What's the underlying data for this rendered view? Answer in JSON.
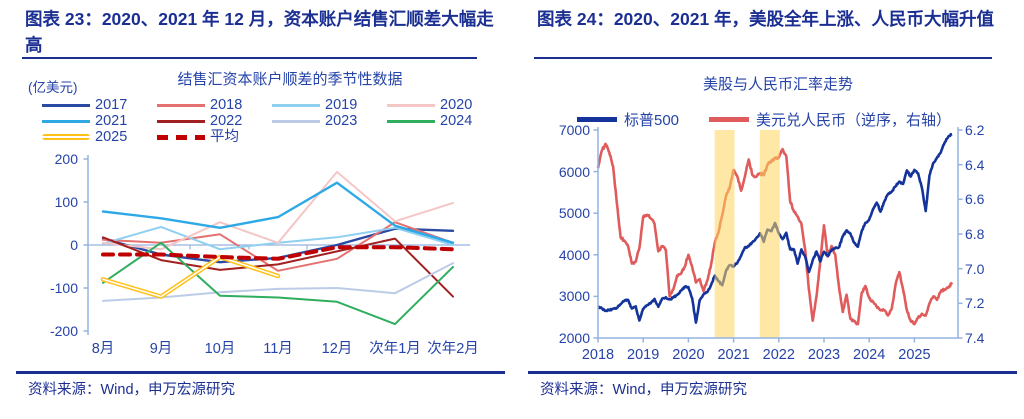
{
  "page": {
    "background": "#FFFFFF"
  },
  "colors": {
    "title_navy": "#1B2F93",
    "label_navy": "#2543A8",
    "axis_blue": "#94B3DF",
    "band_yellow": "#FFD55C"
  },
  "left_panel": {
    "title": "图表 23：2020、2021 年 12 月，资本账户结售汇顺差大幅走高",
    "source": "资料来源：Wind，申万宏源研究",
    "chart_data": {
      "type": "line",
      "title": "结售汇资本账户顺差的季节性数据",
      "unit_label": "(亿美元)",
      "categories": [
        "8月",
        "9月",
        "10月",
        "11月",
        "12月",
        "次年1月",
        "次年2月"
      ],
      "ylim": [
        -200,
        200
      ],
      "yticks": [
        200,
        100,
        0,
        -100,
        -200
      ],
      "grid": "zero-line-only",
      "legend_position": "top",
      "series": [
        {
          "name": "2017",
          "color": "#2B4AA4",
          "values": [
            15,
            -22,
            -40,
            -30,
            0,
            38,
            33
          ]
        },
        {
          "name": "2018",
          "color": "#E57070",
          "values": [
            12,
            5,
            25,
            -60,
            -32,
            53,
            5
          ]
        },
        {
          "name": "2019",
          "color": "#8FCFF0",
          "values": [
            3,
            42,
            -10,
            5,
            18,
            40,
            0
          ]
        },
        {
          "name": "2020",
          "color": "#F5C6C6",
          "values": [
            5,
            -10,
            53,
            5,
            170,
            55,
            98
          ]
        },
        {
          "name": "2021",
          "color": "#2EA9E6",
          "values": [
            78,
            62,
            40,
            65,
            145,
            45,
            5
          ]
        },
        {
          "name": "2022",
          "color": "#A32020",
          "values": [
            18,
            -35,
            -58,
            -45,
            -15,
            15,
            -120
          ]
        },
        {
          "name": "2023",
          "color": "#BCCCE8",
          "values": [
            -130,
            -122,
            -110,
            -102,
            -100,
            -112,
            -42
          ]
        },
        {
          "name": "2024",
          "color": "#2FAE5F",
          "values": [
            -88,
            5,
            -118,
            -122,
            -132,
            -184,
            -51
          ]
        },
        {
          "name": "2025",
          "color": "#FFC01A",
          "style": "double",
          "values": [
            -80,
            -120,
            -28,
            -72,
            null,
            null,
            null
          ]
        },
        {
          "name": "平均",
          "color": "#C00000",
          "style": "dashed",
          "values": [
            -22,
            -22,
            -28,
            -32,
            -5,
            -5,
            -10
          ]
        }
      ]
    }
  },
  "right_panel": {
    "title": "图表 24：2020、2021 年，美股全年上涨、人民币大幅升值",
    "source": "资料来源：Wind，申万宏源研究",
    "chart_data": {
      "type": "line",
      "title": "美股与人民币汇率走势",
      "x_start_year": 2018,
      "x_tick_years": [
        2018,
        2019,
        2020,
        2021,
        2022,
        2023,
        2024,
        2025
      ],
      "left_axis": {
        "range": [
          2000,
          7000
        ],
        "ticks": [
          "7000",
          "6000",
          "5000",
          "4000",
          "3000",
          "2000"
        ]
      },
      "right_axis": {
        "range": [
          6.2,
          7.4
        ],
        "inverted": true,
        "ticks": [
          "6.2",
          "6.4",
          "6.6",
          "6.8",
          "7.0",
          "7.2",
          "7.4"
        ]
      },
      "highlight_bands": [
        {
          "from": 2020.58,
          "to": 2021.02
        },
        {
          "from": 2021.58,
          "to": 2022.02
        }
      ],
      "series": [
        {
          "name": "标普500",
          "axis": "left",
          "color": "#15349B",
          "monthly_values": [
            2750,
            2715,
            2650,
            2670,
            2705,
            2720,
            2815,
            2900,
            2915,
            2710,
            2760,
            2420,
            2704,
            2785,
            2835,
            2940,
            2750,
            2942,
            2980,
            2925,
            2975,
            3035,
            3140,
            3230,
            3225,
            2955,
            2370,
            2910,
            3045,
            3100,
            3270,
            3500,
            3365,
            3270,
            3620,
            3755,
            3715,
            3810,
            3975,
            4180,
            4205,
            4300,
            4395,
            4520,
            4310,
            4605,
            4565,
            4765,
            4515,
            4375,
            4530,
            4130,
            4130,
            3785,
            4130,
            3955,
            3585,
            3870,
            4080,
            3840,
            4075,
            3970,
            4110,
            4170,
            4180,
            4450,
            4590,
            4510,
            4290,
            4195,
            4570,
            4770,
            4845,
            5095,
            5255,
            5035,
            5280,
            5460,
            5520,
            5650,
            5760,
            5705,
            6030,
            5880,
            6040,
            5955,
            5610,
            5050,
            5910,
            6205,
            6340,
            6460,
            6690,
            6840,
            6900
          ]
        },
        {
          "name": "美元兑人民币（逆序，右轴）",
          "axis": "right",
          "color": "#E05C5C",
          "monthly_values": [
            6.42,
            6.32,
            6.28,
            6.33,
            6.41,
            6.62,
            6.82,
            6.84,
            6.87,
            6.97,
            6.96,
            6.88,
            6.7,
            6.69,
            6.71,
            6.74,
            6.9,
            6.87,
            6.89,
            7.16,
            7.12,
            7.04,
            7.03,
            6.99,
            6.92,
            6.99,
            7.08,
            7.06,
            7.13,
            7.07,
            6.98,
            6.85,
            6.79,
            6.69,
            6.58,
            6.53,
            6.43,
            6.47,
            6.55,
            6.47,
            6.37,
            6.46,
            6.47,
            6.45,
            6.46,
            6.4,
            6.38,
            6.36,
            6.36,
            6.31,
            6.35,
            6.61,
            6.67,
            6.7,
            6.74,
            6.89,
            7.12,
            7.3,
            7.16,
            6.96,
            6.75,
            6.93,
            6.87,
            6.92,
            7.11,
            7.25,
            7.15,
            7.29,
            7.3,
            7.32,
            7.14,
            7.1,
            7.17,
            7.19,
            7.22,
            7.24,
            7.24,
            7.27,
            7.23,
            7.09,
            7.02,
            7.12,
            7.24,
            7.3,
            7.32,
            7.28,
            7.26,
            7.27,
            7.2,
            7.16,
            7.18,
            7.13,
            7.12,
            7.11,
            7.08
          ]
        }
      ]
    }
  }
}
